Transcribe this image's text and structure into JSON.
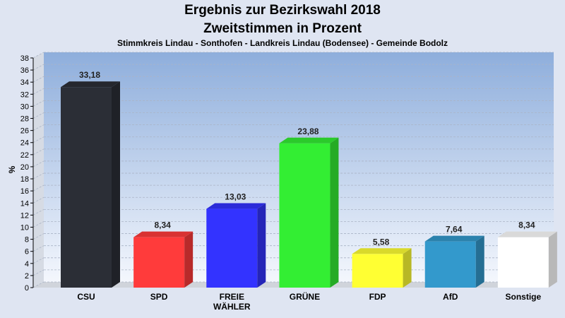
{
  "chart_data": {
    "type": "bar",
    "title": "Ergebnis zur Bezirkswahl 2018",
    "subtitle": "Zweitstimmen in Prozent",
    "subtitle2": "Stimmkreis Lindau - Sonthofen - Landkreis Lindau (Bodensee) - Gemeinde Bodolz",
    "ylabel": "%",
    "ylim": [
      0,
      38
    ],
    "ytick_step": 2,
    "grid": true,
    "categories": [
      "CSU",
      "SPD",
      "FREIE WÄHLER",
      "GRÜNE",
      "FDP",
      "AfD",
      "Sonstige"
    ],
    "category_labels": [
      [
        "CSU"
      ],
      [
        "SPD"
      ],
      [
        "FREIE",
        "WÄHLER"
      ],
      [
        "GRÜNE"
      ],
      [
        "FDP"
      ],
      [
        "AfD"
      ],
      [
        "Sonstige"
      ]
    ],
    "values": [
      33.18,
      8.34,
      13.03,
      23.88,
      5.58,
      7.64,
      8.34
    ],
    "value_labels": [
      "33,18",
      "8,34",
      "13,03",
      "23,88",
      "5,58",
      "7,64",
      "8,34"
    ],
    "colors": [
      "#2b2e36",
      "#ff3b3b",
      "#3333ff",
      "#33ee33",
      "#ffff33",
      "#3399cc",
      "#ffffff"
    ]
  }
}
